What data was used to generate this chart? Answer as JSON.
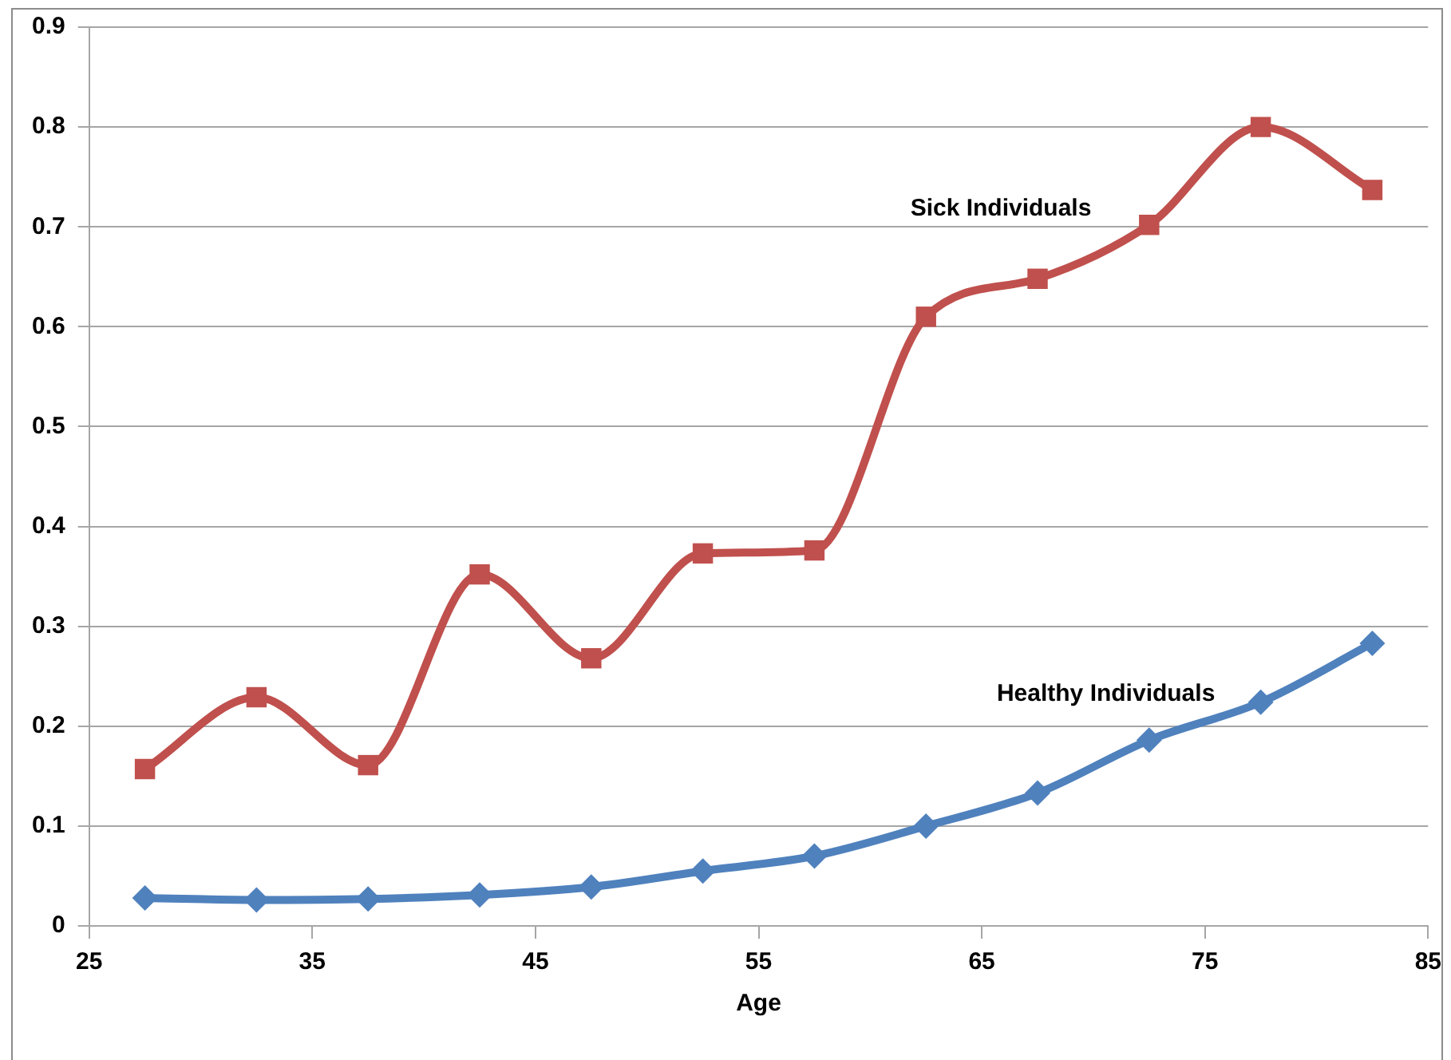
{
  "chart_data": {
    "type": "line",
    "xlabel": "Age",
    "x": [
      27.5,
      32.5,
      37.5,
      42.5,
      47.5,
      52.5,
      57.5,
      62.5,
      67.5,
      72.5,
      77.5,
      82.5
    ],
    "series": [
      {
        "name": "Sick Individuals",
        "color": "#c0504d",
        "marker": "square",
        "values": [
          0.157,
          0.229,
          0.161,
          0.352,
          0.268,
          0.373,
          0.376,
          0.61,
          0.648,
          0.702,
          0.8,
          0.737
        ]
      },
      {
        "name": "Healthy Individuals",
        "color": "#4f81bd",
        "marker": "diamond",
        "values": [
          0.028,
          0.026,
          0.027,
          0.031,
          0.039,
          0.055,
          0.07,
          0.1,
          0.133,
          0.186,
          0.224,
          0.283
        ]
      }
    ],
    "xlim": [
      25,
      85
    ],
    "xticks": [
      25,
      35,
      45,
      55,
      65,
      75,
      85
    ],
    "ylim": [
      0,
      0.9
    ],
    "yticks": [
      0,
      0.1,
      0.2,
      0.3,
      0.4,
      0.5,
      0.6,
      0.7,
      0.8,
      0.9
    ],
    "grid": "y",
    "legend": false
  }
}
